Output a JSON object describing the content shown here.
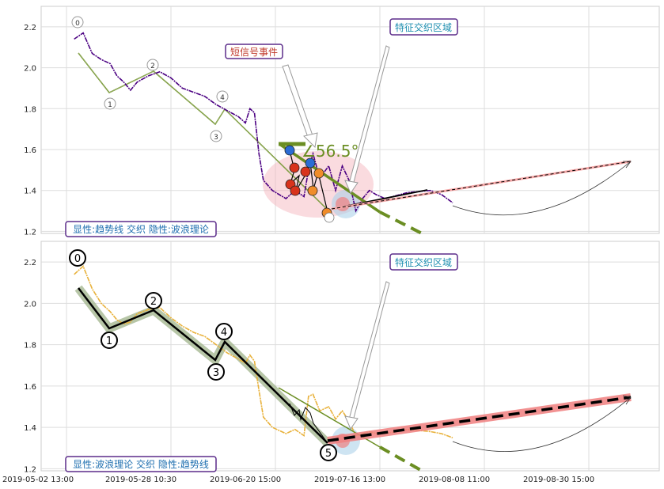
{
  "chart_data": [
    {
      "type": "line",
      "ylim": [
        1.19,
        2.3
      ],
      "yticks": [
        "1.2",
        "1.4",
        "1.6",
        "1.8",
        "2.0",
        "2.2"
      ],
      "xticks": [],
      "grid": true,
      "series": [
        {
          "values": [
            [
              2,
              2.14
            ],
            [
              6,
              2.17
            ],
            [
              10,
              2.07
            ],
            [
              14,
              2.04
            ],
            [
              18,
              2.02
            ],
            [
              21,
              1.96
            ],
            [
              24,
              1.93
            ],
            [
              27,
              1.89
            ],
            [
              30,
              1.93
            ],
            [
              35,
              1.96
            ],
            [
              40,
              1.98
            ],
            [
              45,
              1.95
            ],
            [
              50,
              1.9
            ],
            [
              55,
              1.88
            ],
            [
              60,
              1.86
            ],
            [
              65,
              1.82
            ],
            [
              70,
              1.79
            ],
            [
              75,
              1.76
            ],
            [
              78,
              1.73
            ],
            [
              80,
              1.8
            ],
            [
              82,
              1.78
            ],
            [
              84,
              1.58
            ],
            [
              86,
              1.45
            ],
            [
              90,
              1.4
            ],
            [
              96,
              1.36
            ],
            [
              100,
              1.4
            ],
            [
              104,
              1.37
            ],
            [
              106,
              1.5
            ],
            [
              108,
              1.58
            ],
            [
              111,
              1.46
            ],
            [
              115,
              1.52
            ],
            [
              118,
              1.4
            ],
            [
              121,
              1.52
            ],
            [
              124,
              1.45
            ],
            [
              127,
              1.3
            ],
            [
              130,
              1.36
            ],
            [
              133,
              1.4
            ],
            [
              136,
              1.38
            ],
            [
              140,
              1.36
            ],
            [
              150,
              1.39
            ],
            [
              160,
              1.4
            ],
            [
              165,
              1.38
            ],
            [
              170,
              1.34
            ]
          ]
        }
      ],
      "wave_labels": [
        "0",
        "1",
        "2",
        "4",
        "3"
      ],
      "annotations": {
        "short_signal": "短信号事件",
        "feature_zone": "特征交织区域",
        "angle": "∠56.5°",
        "caption": "显性:趋势线 交织 隐性:波浪理论"
      },
      "colors": {
        "price": "#4b0082",
        "trend": "#6b8e23",
        "accent": "#f4a6a6"
      }
    },
    {
      "type": "line",
      "ylim": [
        1.19,
        2.3
      ],
      "yticks": [
        "1.2",
        "1.4",
        "1.6",
        "1.8",
        "2.0",
        "2.2"
      ],
      "xticks": [
        "2019-05-02 13:00",
        "2019-05-28 10:30",
        "2019-06-20 15:00",
        "2019-07-16 13:00",
        "2019-08-08 11:00",
        "2019-08-30 15:00"
      ],
      "grid": true,
      "series": [
        {
          "values": [
            [
              2,
              2.14
            ],
            [
              6,
              2.18
            ],
            [
              10,
              2.07
            ],
            [
              14,
              2.0
            ],
            [
              18,
              1.96
            ],
            [
              21,
              1.92
            ],
            [
              24,
              1.9
            ],
            [
              27,
              1.91
            ],
            [
              30,
              1.95
            ],
            [
              35,
              1.97
            ],
            [
              40,
              1.98
            ],
            [
              45,
              1.93
            ],
            [
              50,
              1.89
            ],
            [
              55,
              1.86
            ],
            [
              60,
              1.84
            ],
            [
              65,
              1.8
            ],
            [
              70,
              1.76
            ],
            [
              75,
              1.73
            ],
            [
              78,
              1.71
            ],
            [
              80,
              1.75
            ],
            [
              82,
              1.72
            ],
            [
              84,
              1.58
            ],
            [
              86,
              1.45
            ],
            [
              90,
              1.4
            ],
            [
              96,
              1.37
            ],
            [
              100,
              1.39
            ],
            [
              104,
              1.36
            ],
            [
              106,
              1.55
            ],
            [
              108,
              1.56
            ],
            [
              111,
              1.48
            ],
            [
              115,
              1.5
            ],
            [
              118,
              1.44
            ],
            [
              121,
              1.48
            ],
            [
              124,
              1.43
            ],
            [
              127,
              1.36
            ],
            [
              130,
              1.37
            ],
            [
              133,
              1.38
            ],
            [
              136,
              1.37
            ],
            [
              140,
              1.37
            ],
            [
              150,
              1.39
            ],
            [
              160,
              1.38
            ],
            [
              165,
              1.37
            ],
            [
              170,
              1.35
            ]
          ]
        }
      ],
      "wave_labels": [
        "0",
        "1",
        "2",
        "3",
        "4",
        "5"
      ],
      "annotations": {
        "feature_zone": "特征交织区域",
        "caption": "显性:波浪理论 交织 隐性:趋势线"
      },
      "colors": {
        "price": "#e8b13a",
        "wave": "#000000",
        "wave_glow": "#9fb38a",
        "accent": "#f08080"
      }
    }
  ]
}
